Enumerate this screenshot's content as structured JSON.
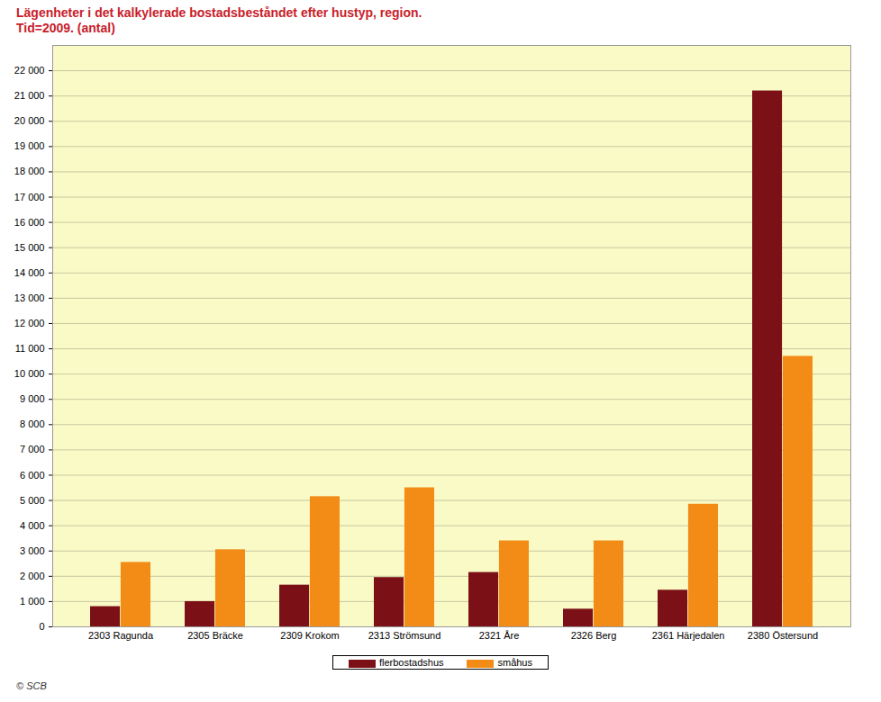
{
  "chart_data": {
    "type": "bar",
    "title": "Lägenheter i det kalkylerade bostadsbeståndet efter hustyp, region.",
    "subtitle": "Tid=2009. (antal)",
    "caption": "© SCB",
    "categories": [
      "2303 Ragunda",
      "2305 Bräcke",
      "2309 Krokom",
      "2313 Strömsund",
      "2321 Åre",
      "2326 Berg",
      "2361 Härjedalen",
      "2380 Östersund"
    ],
    "series": [
      {
        "name": "flerbostadshus",
        "color": "#7b1116",
        "values": [
          800,
          1000,
          1650,
          1950,
          2150,
          700,
          1450,
          21200
        ]
      },
      {
        "name": "småhus",
        "color": "#f28c17",
        "values": [
          2550,
          3050,
          5150,
          5500,
          3400,
          3400,
          4850,
          10700
        ]
      }
    ],
    "ylim": [
      0,
      23000
    ],
    "yticks": [
      0,
      {
        "value": 1000,
        "label": "1 000"
      },
      {
        "value": 2000,
        "label": "2 000"
      },
      {
        "value": 3000,
        "label": "3 000"
      },
      {
        "value": 4000,
        "label": "4 000"
      },
      {
        "value": 5000,
        "label": "5 000"
      },
      {
        "value": 6000,
        "label": "6 000"
      },
      {
        "value": 7000,
        "label": "7 000"
      },
      {
        "value": 8000,
        "label": "8 000"
      },
      {
        "value": 9000,
        "label": "9 000"
      },
      {
        "value": 10000,
        "label": "10 000"
      },
      {
        "value": 11000,
        "label": "11 000"
      },
      {
        "value": 12000,
        "label": "12 000"
      },
      {
        "value": 13000,
        "label": "13 000"
      },
      {
        "value": 14000,
        "label": "14 000"
      },
      {
        "value": 15000,
        "label": "15 000"
      },
      {
        "value": 16000,
        "label": "16 000"
      },
      {
        "value": 17000,
        "label": "17 000"
      },
      {
        "value": 18000,
        "label": "18 000"
      },
      {
        "value": 19000,
        "label": "19 000"
      },
      {
        "value": 20000,
        "label": "20 000"
      },
      {
        "value": 21000,
        "label": "21 000"
      },
      {
        "value": 22000,
        "label": "22 000"
      }
    ],
    "grid": true,
    "legend": "bottom"
  }
}
